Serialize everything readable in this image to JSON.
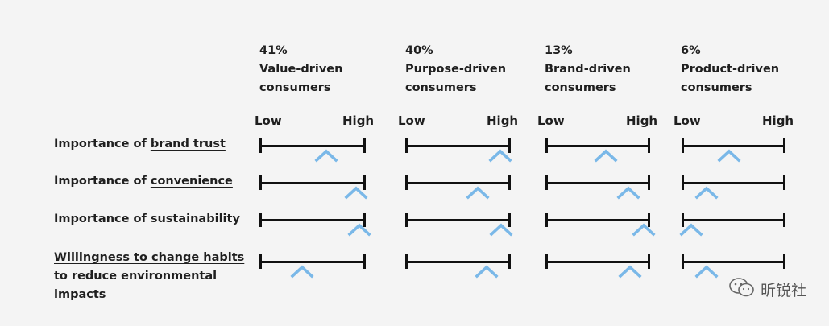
{
  "segments": [
    {
      "pct": "41%",
      "line1": "Value-driven",
      "line2": "consumers"
    },
    {
      "pct": "40%",
      "line1": "Purpose-driven",
      "line2": "consumers"
    },
    {
      "pct": "13%",
      "line1": "Brand-driven",
      "line2": "consumers"
    },
    {
      "pct": "6%",
      "line1": "Product-driven",
      "line2": "consumers"
    }
  ],
  "scale_labels": {
    "low": "Low",
    "high": "High"
  },
  "rows": [
    {
      "prefix": "Importance of ",
      "emph": "brand trust"
    },
    {
      "prefix": "Importance of ",
      "emph": "convenience"
    },
    {
      "prefix": "Importance of ",
      "emph": "sustainability"
    },
    {
      "emph": "Willingness to change habits",
      "line2": "to reduce environmental",
      "line3": "impacts"
    }
  ],
  "marker_positions_fraction": [
    [
      0.63,
      0.9,
      0.58,
      0.46
    ],
    [
      0.91,
      0.69,
      0.79,
      0.24
    ],
    [
      0.94,
      0.91,
      0.94,
      0.09
    ],
    [
      0.4,
      0.77,
      0.81,
      0.24
    ]
  ],
  "colors": {
    "marker": "#7ab8e8",
    "scale": "#111111",
    "text": "#1f1f1f"
  },
  "watermark": {
    "icon": "wechat-icon",
    "text": "昕锐社"
  }
}
